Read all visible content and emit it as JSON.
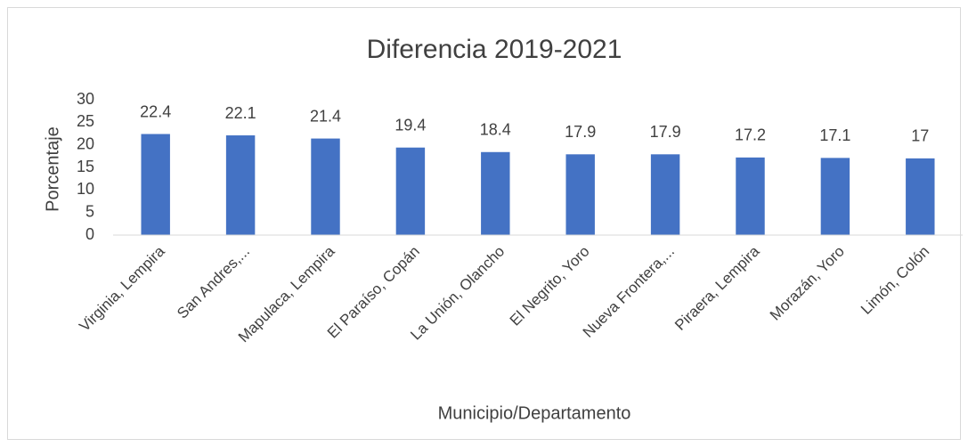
{
  "chart_data": {
    "type": "bar",
    "title": "Diferencia 2019-2021",
    "x_label": "Municipio/Departamento",
    "y_label": "Porcentaje",
    "categories": [
      "Virginia, Lempira",
      "San Andres,...",
      "Mapulaca,  Lempira",
      "El Paraíso,  Copán",
      "La Unión,  Olancho",
      "El Negrito, Yoro",
      "Nueva Frontera,...",
      "Piraera,  Lempira",
      "Morazán, Yoro",
      "Limón,  Colón"
    ],
    "values": [
      22.4,
      22.1,
      21.4,
      19.4,
      18.4,
      17.9,
      17.9,
      17.2,
      17.1,
      17
    ],
    "color": "#4472c4",
    "ylim": [
      0,
      30
    ],
    "yticks": [
      0,
      5,
      10,
      15,
      20,
      25,
      30
    ],
    "grid": false
  }
}
